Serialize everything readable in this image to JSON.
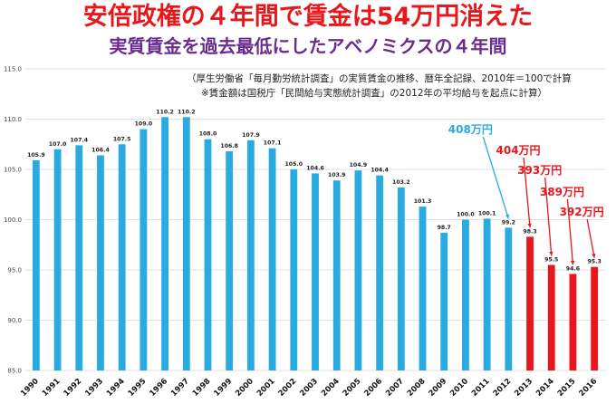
{
  "header": {
    "title": "安倍政権の４年間で賃金は54万円消えた",
    "title_color": "#e8171c",
    "subtitle": "実質賃金を過去最低にしたアベノミクスの４年間",
    "subtitle_color": "#6a2c91",
    "note1": "（厚生労働省「毎月勤労統計調査」の実質賃金の推移、暦年全記録、2010年＝100で計算",
    "note2": "※賃金額は国税庁「民間給与実態統計調査」の2012年の平均給与を起点に計算）"
  },
  "chart_data": {
    "type": "bar",
    "categories": [
      "1990",
      "1991",
      "1992",
      "1993",
      "1994",
      "1995",
      "1996",
      "1997",
      "1998",
      "1999",
      "2000",
      "2001",
      "2002",
      "2003",
      "2004",
      "2005",
      "2006",
      "2007",
      "2008",
      "2009",
      "2010",
      "2011",
      "2012",
      "2013",
      "2014",
      "2015",
      "2016"
    ],
    "values": [
      105.9,
      107.0,
      107.4,
      106.4,
      107.5,
      109.0,
      110.2,
      110.2,
      108.0,
      106.8,
      107.9,
      107.1,
      105.0,
      104.6,
      103.9,
      104.9,
      104.4,
      103.2,
      101.3,
      98.7,
      100.0,
      100.1,
      99.2,
      98.3,
      95.5,
      94.6,
      95.3
    ],
    "value_labels": [
      "105.9",
      "107.0",
      "107.4",
      "106.4",
      "107.5",
      "109.0",
      "110.2",
      "110.2",
      "108.0",
      "106.8",
      "107.9",
      "107.1",
      "105.0",
      "104.6",
      "103.9",
      "104.9",
      "104.4",
      "103.2",
      "101.3",
      "98.7",
      "100.0",
      "100.1",
      "99.2",
      "98.3",
      "95.5",
      "94.6",
      "95.3"
    ],
    "ylim": [
      85,
      115
    ],
    "yticks": [
      "85.0",
      "90.0",
      "95.0",
      "100.0",
      "105.0",
      "110.0",
      "115.0"
    ],
    "grid": true,
    "colors": {
      "default": "#29abe2",
      "highlight": "#e8171c"
    },
    "highlight_categories": [
      "2013",
      "2014",
      "2015",
      "2016"
    ],
    "annotations": [
      {
        "text": "408万円",
        "category": "2012",
        "color": "#29abe2"
      },
      {
        "text": "404万円",
        "category": "2013",
        "color": "#e8171c"
      },
      {
        "text": "393万円",
        "category": "2014",
        "color": "#e8171c"
      },
      {
        "text": "389万円",
        "category": "2015",
        "color": "#e8171c"
      },
      {
        "text": "392万円",
        "category": "2016",
        "color": "#e8171c"
      }
    ]
  }
}
